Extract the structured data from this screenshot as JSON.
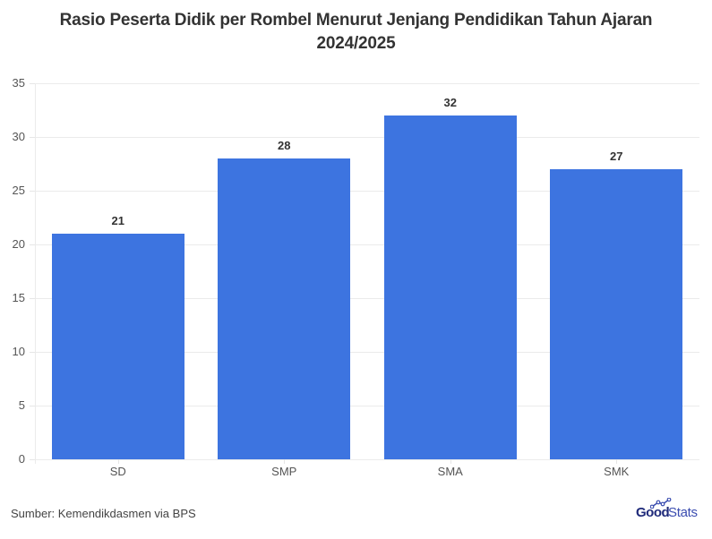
{
  "chart_data": {
    "type": "bar",
    "title": "Rasio Peserta Didik per Rombel Menurut Jenjang Pendidikan Tahun Ajaran 2024/2025",
    "title_lines": [
      "Rasio Peserta Didik per Rombel Menurut Jenjang Pendidikan Tahun Ajaran",
      "2024/2025"
    ],
    "categories": [
      "SD",
      "SMP",
      "SMA",
      "SMK"
    ],
    "values": [
      21,
      28,
      32,
      27
    ],
    "value_labels": [
      "21",
      "28",
      "32",
      "27"
    ],
    "xlabel": "",
    "ylabel": "",
    "ylim": [
      0,
      35
    ],
    "yticks": [
      0,
      5,
      10,
      15,
      20,
      25,
      30,
      35
    ],
    "ytick_labels": [
      "0",
      "5",
      "10",
      "15",
      "20",
      "25",
      "30",
      "35"
    ],
    "grid": true,
    "legend": null,
    "bar_color": "#3d74e0"
  },
  "footer": {
    "source": "Sumber: Kemendikdasmen via BPS",
    "brand_good": "Good",
    "brand_stats": "Stats"
  }
}
